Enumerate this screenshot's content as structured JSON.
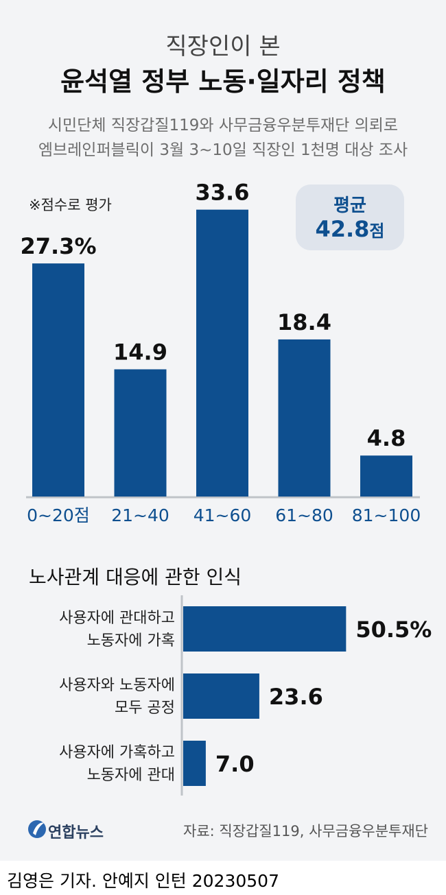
{
  "header": {
    "subtitle": "직장인이 본",
    "title": "윤석열 정부 노동·일자리 정책",
    "description": [
      "시민단체 직장갑질119와 사무금융우분투재단 의뢰로",
      "엠브레인퍼블릭이 3월 3~10일 직장인 1천명 대상 조사"
    ]
  },
  "note": "※점수로 평가",
  "average": {
    "label": "평균",
    "value": "42.8",
    "unit": "점"
  },
  "section2_title": "노사관계 대응에 관한 인식",
  "colors": {
    "bar": "#0e4f8f",
    "axis_label": "#0e4f8f",
    "card_bg": "#f3f4f6",
    "avg_box": "#dfe4ec"
  },
  "chart_data": [
    {
      "type": "bar",
      "orientation": "vertical",
      "categories": [
        "0~20점",
        "21~40",
        "41~60",
        "61~80",
        "81~100"
      ],
      "values": [
        27.3,
        14.9,
        33.6,
        18.4,
        4.8
      ],
      "value_labels": [
        "27.3%",
        "14.9",
        "33.6",
        "18.4",
        "4.8"
      ],
      "unit": "%"
    },
    {
      "type": "bar",
      "orientation": "horizontal",
      "categories": [
        [
          "사용자에 관대하고",
          "노동자에 가혹"
        ],
        [
          "사용자와 노동자에",
          "모두 공정"
        ],
        [
          "사용자에 가혹하고",
          "노동자에 관대"
        ]
      ],
      "values": [
        50.5,
        23.6,
        7.0
      ],
      "value_labels": [
        "50.5%",
        "23.6",
        "7.0"
      ],
      "unit": "%"
    }
  ],
  "footer": {
    "logo_text": "연합뉴스",
    "source": "자료: 직장갑질119, 사무금융우분투재단",
    "credit": "김영은 기자. 안예지 인턴  20230507"
  }
}
